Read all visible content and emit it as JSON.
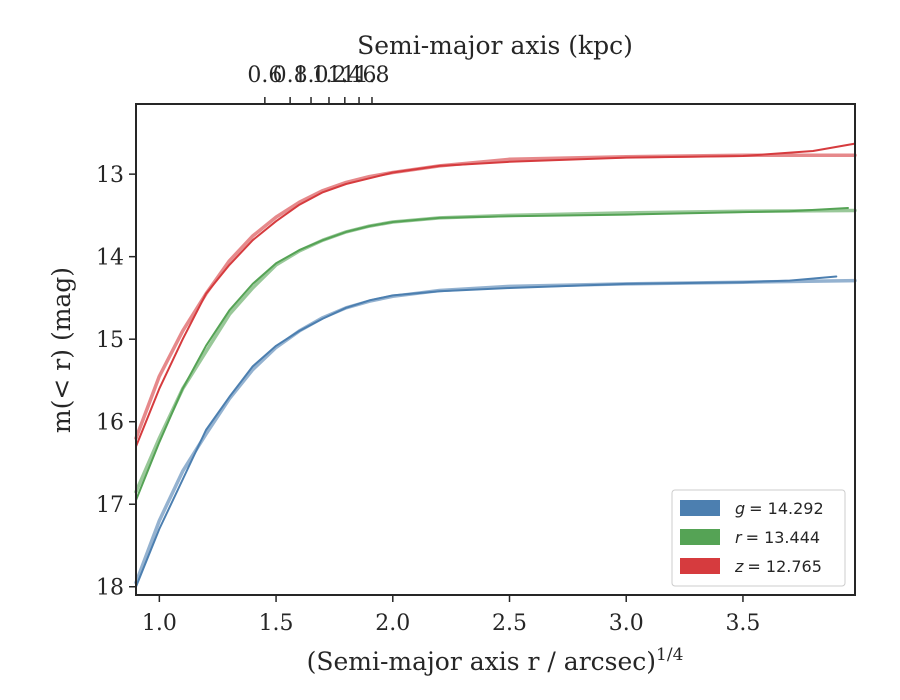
{
  "chart_data": {
    "type": "line",
    "title": "",
    "xlabel": "(Semi-major axis r / arcsec)",
    "xlabel_superscript": "1/4",
    "ylabel": "m(< r) (mag)",
    "top_xlabel": "Semi-major axis (kpc)",
    "xlim": [
      0.9,
      3.98
    ],
    "ylim": [
      18.1,
      12.15
    ],
    "y_inverted": true,
    "x_ticks": [
      "1.0",
      "1.5",
      "2.0",
      "2.5",
      "3.0",
      "3.5"
    ],
    "y_ticks": [
      "13",
      "14",
      "15",
      "16",
      "17",
      "18"
    ],
    "top_ticks": [
      "0.6",
      "0.8",
      "1.0",
      "1.2",
      "1.4",
      "1.6",
      "1.8"
    ],
    "grid": false,
    "legend_position": "lower-right",
    "legend": [
      {
        "band": "g",
        "text": "= 14.292",
        "color": "#4c7fb0"
      },
      {
        "band": "r",
        "text": "= 13.444",
        "color": "#55a355"
      },
      {
        "band": "z",
        "text": "= 12.765",
        "color": "#d63b3e"
      }
    ],
    "series": [
      {
        "name": "g = 14.292",
        "color": "#4c7fb0",
        "data_x": [
          0.9,
          1.0,
          1.1,
          1.2,
          1.3,
          1.4,
          1.5,
          1.6,
          1.7,
          1.8,
          1.9,
          2.0,
          2.2,
          2.5,
          3.0,
          3.5,
          3.7,
          3.9
        ],
        "data_y": [
          18.0,
          17.3,
          16.7,
          16.1,
          15.7,
          15.33,
          15.08,
          14.9,
          14.75,
          14.62,
          14.53,
          14.47,
          14.42,
          14.38,
          14.33,
          14.31,
          14.29,
          14.24
        ],
        "model_x": [
          0.9,
          1.0,
          1.1,
          1.2,
          1.3,
          1.4,
          1.5,
          1.6,
          1.7,
          1.8,
          1.9,
          2.0,
          2.2,
          2.5,
          3.0,
          3.5,
          3.98
        ],
        "model_y": [
          17.95,
          17.2,
          16.6,
          16.15,
          15.72,
          15.37,
          15.1,
          14.9,
          14.74,
          14.62,
          14.54,
          14.48,
          14.41,
          14.36,
          14.33,
          14.31,
          14.29
        ]
      },
      {
        "name": "r = 13.444",
        "color": "#55a355",
        "data_x": [
          0.9,
          1.0,
          1.1,
          1.2,
          1.3,
          1.4,
          1.5,
          1.6,
          1.7,
          1.8,
          1.9,
          2.0,
          2.2,
          2.5,
          3.0,
          3.5,
          3.7,
          3.95
        ],
        "data_y": [
          16.95,
          16.25,
          15.6,
          15.08,
          14.65,
          14.33,
          14.08,
          13.92,
          13.8,
          13.7,
          13.63,
          13.58,
          13.53,
          13.51,
          13.49,
          13.46,
          13.45,
          13.41
        ],
        "model_x": [
          0.9,
          1.0,
          1.1,
          1.2,
          1.3,
          1.4,
          1.5,
          1.6,
          1.7,
          1.8,
          1.9,
          2.0,
          2.2,
          2.5,
          3.0,
          3.5,
          3.98
        ],
        "model_y": [
          16.85,
          16.2,
          15.6,
          15.15,
          14.7,
          14.38,
          14.1,
          13.93,
          13.8,
          13.7,
          13.63,
          13.58,
          13.53,
          13.5,
          13.47,
          13.45,
          13.44
        ]
      },
      {
        "name": "z = 12.765",
        "color": "#d63b3e",
        "data_x": [
          0.9,
          1.0,
          1.1,
          1.2,
          1.3,
          1.4,
          1.5,
          1.6,
          1.7,
          1.8,
          1.9,
          2.0,
          2.2,
          2.5,
          3.0,
          3.5,
          3.8,
          3.98
        ],
        "data_y": [
          16.3,
          15.6,
          15.0,
          14.45,
          14.1,
          13.8,
          13.57,
          13.37,
          13.22,
          13.12,
          13.05,
          12.98,
          12.9,
          12.85,
          12.8,
          12.78,
          12.72,
          12.63
        ],
        "model_x": [
          0.9,
          1.0,
          1.1,
          1.2,
          1.3,
          1.4,
          1.5,
          1.6,
          1.7,
          1.8,
          1.9,
          2.0,
          2.2,
          2.5,
          3.0,
          3.5,
          3.98
        ],
        "model_y": [
          16.2,
          15.45,
          14.9,
          14.45,
          14.05,
          13.75,
          13.52,
          13.34,
          13.2,
          13.1,
          13.03,
          12.98,
          12.9,
          12.82,
          12.79,
          12.77,
          12.77
        ]
      }
    ]
  }
}
